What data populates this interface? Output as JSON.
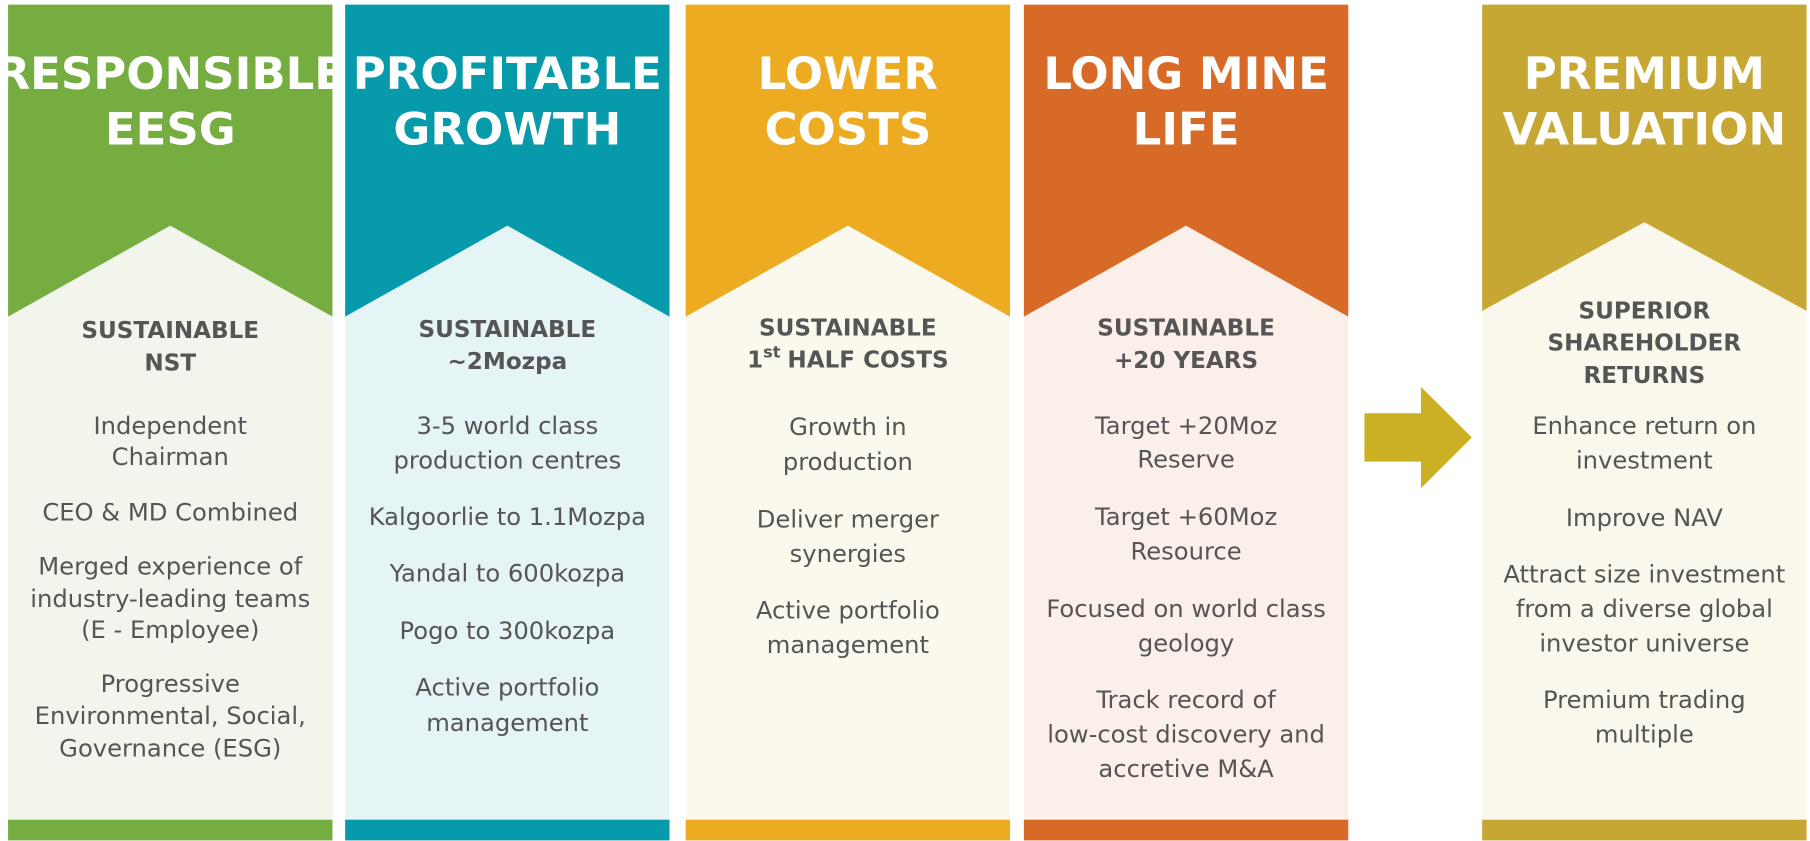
{
  "columns": [
    {
      "color": "#76ad40",
      "bg": "#f1f5ec",
      "title": [
        "RESPONSIBLE",
        "EESG"
      ],
      "subtitle": [
        "SUSTAINABLE",
        "NST"
      ],
      "items": [
        [
          "Independent",
          "Chairman"
        ],
        [
          "CEO & MD Combined"
        ],
        [
          "Merged experience of",
          "industry-leading teams",
          "(E - Employee)"
        ],
        [
          "Progressive",
          "Environmental, Social,",
          "Governance (ESG)"
        ]
      ]
    },
    {
      "color": "#079aaa",
      "bg": "#e5f4f5",
      "title": [
        "PROFITABLE",
        "GROWTH"
      ],
      "subtitle": [
        "SUSTAINABLE",
        "~2Mozpa"
      ],
      "items": [
        [
          "3-5 world class",
          "production centres"
        ],
        [
          "Kalgoorlie to 1.1Mozpa"
        ],
        [
          "Yandal to 600kozpa"
        ],
        [
          "Pogo to 300kozpa"
        ],
        [
          "Active portfolio",
          "management"
        ]
      ]
    },
    {
      "color": "#edab22",
      "bg": "#fbf9ee",
      "title": [
        "LOWER",
        "COSTS"
      ],
      "subtitle": [
        "SUSTAINABLE",
        [
          "1",
          "st",
          "HALF COSTS"
        ]
      ],
      "items": [
        [
          "Growth in",
          "production"
        ],
        [
          "Deliver merger",
          "synergies"
        ],
        [
          "Active portfolio",
          "management"
        ]
      ]
    },
    {
      "color": "#d86a28",
      "bg": "#fbefe9",
      "title": [
        "LONG MINE",
        "LIFE"
      ],
      "subtitle": [
        "SUSTAINABLE",
        "+20 YEARS"
      ],
      "items": [
        [
          "Target +20Moz",
          "Reserve"
        ],
        [
          "Target +60Moz",
          "Resource"
        ],
        [
          "Focused on world class",
          "geology"
        ],
        [
          "Track record of",
          "low-cost discovery and",
          "accretive M&A"
        ]
      ]
    },
    {
      "color": "#c6a733",
      "bg": "#faf8ed",
      "title": [
        "PREMIUM",
        "VALUATION"
      ],
      "subtitle": [
        "SUPERIOR",
        "SHAREHOLDER",
        "RETURNS"
      ],
      "items": [
        [
          "Enhance return on",
          "investment"
        ],
        [
          "Improve NAV"
        ],
        [
          "Attract size investment",
          "from a diverse global",
          "investor universe"
        ],
        [
          "Premium trading",
          "multiple"
        ]
      ]
    }
  ],
  "arrow_color": "#cbb024"
}
